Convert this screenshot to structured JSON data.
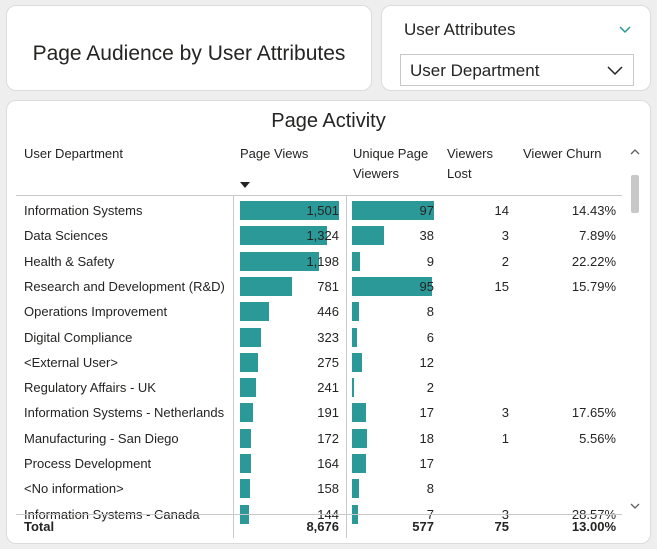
{
  "title": "Page Audience by User Attributes",
  "slicer": {
    "header": "User Attributes",
    "selected": "User Department"
  },
  "table": {
    "title": "Page Activity",
    "columns": {
      "department": "User Department",
      "page_views": "Page Views",
      "unique_l1": "Unique Page",
      "unique_l2": "Viewers",
      "lost_l1": "Viewers",
      "lost_l2": "Lost",
      "churn": "Viewer Churn"
    },
    "sorted_by": "Page Views",
    "bar_color": "#2b9997",
    "rows": [
      {
        "department": "Information Systems",
        "page_views": "1,501",
        "views_val": 1501,
        "unique": "97",
        "unique_val": 97,
        "lost": "14",
        "churn": "14.43%"
      },
      {
        "department": "Data Sciences",
        "page_views": "1,324",
        "views_val": 1324,
        "unique": "38",
        "unique_val": 38,
        "lost": "3",
        "churn": "7.89%"
      },
      {
        "department": "Health & Safety",
        "page_views": "1,198",
        "views_val": 1198,
        "unique": "9",
        "unique_val": 9,
        "lost": "2",
        "churn": "22.22%"
      },
      {
        "department": "Research and Development (R&D)",
        "page_views": "781",
        "views_val": 781,
        "unique": "95",
        "unique_val": 95,
        "lost": "15",
        "churn": "15.79%"
      },
      {
        "department": "Operations Improvement",
        "page_views": "446",
        "views_val": 446,
        "unique": "8",
        "unique_val": 8,
        "lost": "",
        "churn": ""
      },
      {
        "department": "Digital Compliance",
        "page_views": "323",
        "views_val": 323,
        "unique": "6",
        "unique_val": 6,
        "lost": "",
        "churn": ""
      },
      {
        "department": "<External User>",
        "page_views": "275",
        "views_val": 275,
        "unique": "12",
        "unique_val": 12,
        "lost": "",
        "churn": ""
      },
      {
        "department": "Regulatory Affairs - UK",
        "page_views": "241",
        "views_val": 241,
        "unique": "2",
        "unique_val": 2,
        "lost": "",
        "churn": ""
      },
      {
        "department": "Information Systems - Netherlands",
        "page_views": "191",
        "views_val": 191,
        "unique": "17",
        "unique_val": 17,
        "lost": "3",
        "churn": "17.65%"
      },
      {
        "department": "Manufacturing - San Diego",
        "page_views": "172",
        "views_val": 172,
        "unique": "18",
        "unique_val": 18,
        "lost": "1",
        "churn": "5.56%"
      },
      {
        "department": "Process Development",
        "page_views": "164",
        "views_val": 164,
        "unique": "17",
        "unique_val": 17,
        "lost": "",
        "churn": ""
      },
      {
        "department": "<No information>",
        "page_views": "158",
        "views_val": 158,
        "unique": "8",
        "unique_val": 8,
        "lost": "",
        "churn": ""
      },
      {
        "department": "Information Systems - Canada",
        "page_views": "144",
        "views_val": 144,
        "unique": "7",
        "unique_val": 7,
        "lost": "3",
        "churn": "28.57%"
      }
    ],
    "total": {
      "label": "Total",
      "page_views": "8,676",
      "unique": "577",
      "lost": "75",
      "churn": "13.00%"
    }
  }
}
